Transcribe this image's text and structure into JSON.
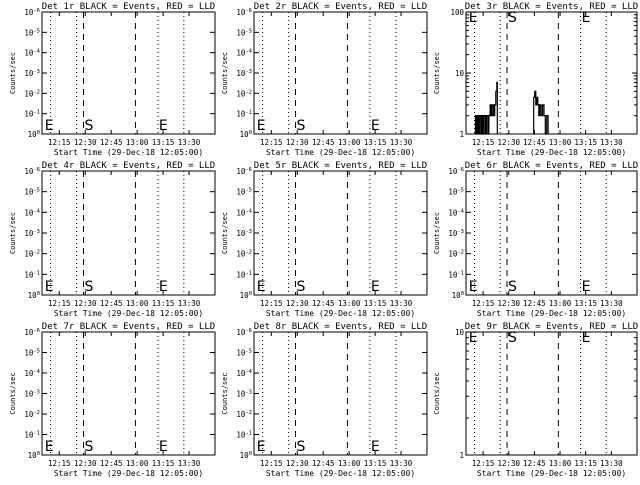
{
  "layout": {
    "rows": 3,
    "cols": 3
  },
  "charts": [
    {
      "title": "Det 1r BLACK = Events, RED = LLD",
      "ylabel": "Counts/sec",
      "xlabel": "Start Time (29-Dec-18 12:05:00)",
      "xticks": [
        "12:15",
        "12:30",
        "12:45",
        "13:00",
        "13:15",
        "13:30"
      ],
      "yticks": [
        "10^0",
        "10^-1",
        "10^-2",
        "10^-3",
        "10^-4",
        "10^-5",
        "10^-6"
      ],
      "markers": [
        "E",
        "S",
        "E"
      ],
      "series": []
    },
    {
      "title": "Det 2r BLACK = Events, RED = LLD",
      "ylabel": "Counts/sec",
      "xlabel": "Start Time (29-Dec-18 12:05:00)",
      "xticks": [
        "12:15",
        "12:30",
        "12:45",
        "13:00",
        "13:15",
        "13:30"
      ],
      "yticks": [
        "10^0",
        "10^-1",
        "10^-2",
        "10^-3",
        "10^-4",
        "10^-5",
        "10^-6"
      ],
      "markers": [
        "E",
        "S",
        "E"
      ],
      "series": []
    },
    {
      "title": "Det 3r BLACK = Events, RED = LLD",
      "ylabel": "Counts/sec",
      "xlabel": "Start Time (29-Dec-18 12:05:00)",
      "xticks": [
        "12:15",
        "12:30",
        "12:45",
        "13:00",
        "13:15",
        "13:30"
      ],
      "yticks": [
        "1",
        "10",
        "100"
      ],
      "markers": [
        "E",
        "S",
        "E"
      ],
      "series": [
        {
          "name": "Events",
          "color": "#000000",
          "segments": [
            [
              [
                5.5,
                1
              ],
              [
                5.5,
                2
              ],
              [
                6.2,
                2
              ],
              [
                6.2,
                1
              ],
              [
                6.8,
                1
              ],
              [
                6.8,
                2
              ],
              [
                7.4,
                2
              ],
              [
                7.4,
                1
              ],
              [
                8.0,
                1
              ],
              [
                8.0,
                2
              ],
              [
                8.8,
                2
              ],
              [
                8.8,
                1
              ],
              [
                9.4,
                1
              ],
              [
                9.4,
                2
              ],
              [
                10.0,
                2
              ],
              [
                10.0,
                1
              ],
              [
                10.6,
                1
              ],
              [
                10.6,
                2
              ],
              [
                11.4,
                2
              ],
              [
                11.4,
                1
              ],
              [
                12.0,
                1
              ],
              [
                12.0,
                2
              ],
              [
                12.8,
                2
              ],
              [
                12.8,
                1
              ],
              [
                13.4,
                1
              ],
              [
                13.4,
                2
              ],
              [
                14.1,
                2
              ],
              [
                14.1,
                3
              ],
              [
                14.8,
                3
              ],
              [
                14.8,
                2
              ],
              [
                15.4,
                2
              ],
              [
                15.4,
                3
              ],
              [
                16.2,
                3
              ],
              [
                16.2,
                2
              ],
              [
                16.8,
                2
              ],
              [
                16.8,
                3
              ],
              [
                17.4,
                3
              ],
              [
                17.4,
                5
              ],
              [
                18.0,
                5
              ],
              [
                18.0,
                7
              ],
              [
                18.3,
                7
              ],
              [
                18.3,
                1
              ]
            ],
            [
              [
                39.6,
                1
              ],
              [
                39.6,
                4
              ],
              [
                40.2,
                4
              ],
              [
                40.2,
                5
              ],
              [
                40.8,
                5
              ],
              [
                40.8,
                3
              ],
              [
                41.4,
                3
              ],
              [
                41.4,
                4
              ],
              [
                42.0,
                4
              ],
              [
                42.0,
                3
              ],
              [
                42.6,
                3
              ],
              [
                42.6,
                2
              ],
              [
                43.2,
                2
              ],
              [
                43.2,
                3
              ],
              [
                44.0,
                3
              ],
              [
                44.0,
                2
              ],
              [
                44.8,
                2
              ],
              [
                44.8,
                3
              ],
              [
                45.6,
                3
              ],
              [
                45.6,
                2
              ],
              [
                46.4,
                2
              ],
              [
                46.4,
                1
              ],
              [
                47.2,
                1
              ],
              [
                47.2,
                2
              ],
              [
                48.0,
                2
              ],
              [
                48.0,
                1
              ]
            ]
          ]
        }
      ]
    },
    {
      "title": "Det 4r BLACK = Events, RED = LLD",
      "ylabel": "Counts/sec",
      "xlabel": "Start Time (29-Dec-18 12:05:00)",
      "xticks": [
        "12:15",
        "12:30",
        "12:45",
        "13:00",
        "13:15",
        "13:30"
      ],
      "yticks": [
        "10^0",
        "10^-1",
        "10^-2",
        "10^-3",
        "10^-4",
        "10^-5",
        "10^-6"
      ],
      "markers": [
        "E",
        "S",
        "E"
      ],
      "series": []
    },
    {
      "title": "Det 5r BLACK = Events, RED = LLD",
      "ylabel": "Counts/sec",
      "xlabel": "Start Time (29-Dec-18 12:05:00)",
      "xticks": [
        "12:15",
        "12:30",
        "12:45",
        "13:00",
        "13:15",
        "13:30"
      ],
      "yticks": [
        "10^0",
        "10^-1",
        "10^-2",
        "10^-3",
        "10^-4",
        "10^-5",
        "10^-6"
      ],
      "markers": [
        "E",
        "S",
        "E"
      ],
      "series": []
    },
    {
      "title": "Det 6r BLACK = Events, RED = LLD",
      "ylabel": "Counts/sec",
      "xlabel": "Start Time (29-Dec-18 12:05:00)",
      "xticks": [
        "12:15",
        "12:30",
        "12:45",
        "13:00",
        "13:15",
        "13:30"
      ],
      "yticks": [
        "10^0",
        "10^-1",
        "10^-2",
        "10^-3",
        "10^-4",
        "10^-5",
        "10^-6"
      ],
      "markers": [
        "E",
        "S",
        "E"
      ],
      "series": []
    },
    {
      "title": "Det 7r BLACK = Events, RED = LLD",
      "ylabel": "Counts/sec",
      "xlabel": "Start Time (29-Dec-18 12:05:00)",
      "xticks": [
        "12:15",
        "12:30",
        "12:45",
        "13:00",
        "13:15",
        "13:30"
      ],
      "yticks": [
        "10^0",
        "10^-1",
        "10^-2",
        "10^-3",
        "10^-4",
        "10^-5",
        "10^-6"
      ],
      "markers": [
        "E",
        "S",
        "E"
      ],
      "series": []
    },
    {
      "title": "Det 8r BLACK = Events, RED = LLD",
      "ylabel": "Counts/sec",
      "xlabel": "Start Time (29-Dec-18 12:05:00)",
      "xticks": [
        "12:15",
        "12:30",
        "12:45",
        "13:00",
        "13:15",
        "13:30"
      ],
      "yticks": [
        "10^0",
        "10^-1",
        "10^-2",
        "10^-3",
        "10^-4",
        "10^-5",
        "10^-6"
      ],
      "markers": [
        "E",
        "S",
        "E"
      ],
      "series": []
    },
    {
      "title": "Det 9r BLACK = Events, RED = LLD",
      "ylabel": "Counts/sec",
      "xlabel": "Start Time (29-Dec-18 12:05:00)",
      "xticks": [
        "12:15",
        "12:30",
        "12:45",
        "13:00",
        "13:15",
        "13:30"
      ],
      "yticks": [
        "1",
        "10"
      ],
      "markers": [
        "E",
        "S",
        "E"
      ],
      "series": []
    }
  ],
  "chart_data": [
    {
      "type": "line",
      "title": "Det 1r BLACK = Events, RED = LLD",
      "xlabel": "Start Time (29-Dec-18 12:05:00)",
      "ylabel": "Counts/sec",
      "x_range": [
        "12:05",
        "13:45"
      ],
      "yscale": "log",
      "vlines": {
        "dotted": [
          "12:10",
          "12:25",
          "13:12",
          "13:42"
        ],
        "dashed": [
          "12:29",
          "12:59"
        ],
        "S": "12:29",
        "E": [
          "12:06",
          "13:12"
        ]
      },
      "series": []
    },
    {
      "type": "line",
      "title": "Det 2r BLACK = Events, RED = LLD",
      "xlabel": "Start Time (29-Dec-18 12:05:00)",
      "ylabel": "Counts/sec",
      "x_range": [
        "12:05",
        "13:45"
      ],
      "yscale": "log",
      "series": []
    },
    {
      "type": "line",
      "title": "Det 3r BLACK = Events, RED = LLD",
      "xlabel": "Start Time (29-Dec-18 12:05:00)",
      "ylabel": "Counts/sec",
      "x_range": [
        "12:05",
        "13:45"
      ],
      "yscale": "log",
      "ylim": [
        1,
        100
      ],
      "series": [
        {
          "name": "Events",
          "color": "#000000",
          "note": "count rate 1-7 near 12:10-12:23 and 1-5 near 12:45-12:53"
        }
      ]
    },
    {
      "type": "line",
      "title": "Det 4r BLACK = Events, RED = LLD",
      "xlabel": "Start Time (29-Dec-18 12:05:00)",
      "ylabel": "Counts/sec",
      "x_range": [
        "12:05",
        "13:45"
      ],
      "yscale": "log",
      "series": []
    },
    {
      "type": "line",
      "title": "Det 5r BLACK = Events, RED = LLD",
      "xlabel": "Start Time (29-Dec-18 12:05:00)",
      "ylabel": "Counts/sec",
      "x_range": [
        "12:05",
        "13:45"
      ],
      "yscale": "log",
      "series": []
    },
    {
      "type": "line",
      "title": "Det 6r BLACK = Events, RED = LLD",
      "xlabel": "Start Time (29-Dec-18 12:05:00)",
      "ylabel": "Counts/sec",
      "x_range": [
        "12:05",
        "13:45"
      ],
      "yscale": "log",
      "series": []
    },
    {
      "type": "line",
      "title": "Det 7r BLACK = Events, RED = LLD",
      "xlabel": "Start Time (29-Dec-18 12:05:00)",
      "ylabel": "Counts/sec",
      "x_range": [
        "12:05",
        "13:45"
      ],
      "yscale": "log",
      "series": []
    },
    {
      "type": "line",
      "title": "Det 8r BLACK = Events, RED = LLD",
      "xlabel": "Start Time (29-Dec-18 12:05:00)",
      "ylabel": "Counts/sec",
      "x_range": [
        "12:05",
        "13:45"
      ],
      "yscale": "log",
      "series": []
    },
    {
      "type": "line",
      "title": "Det 9r BLACK = Events, RED = LLD",
      "xlabel": "Start Time (29-Dec-18 12:05:00)",
      "ylabel": "Counts/sec",
      "x_range": [
        "12:05",
        "13:45"
      ],
      "yscale": "log",
      "ylim": [
        1,
        10
      ],
      "series": []
    }
  ]
}
